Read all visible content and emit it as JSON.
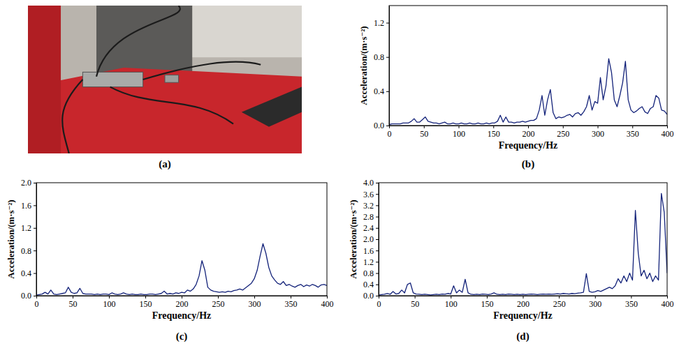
{
  "chart_data": [
    {
      "type": "image",
      "title": "(a)"
    },
    {
      "type": "line",
      "title": "(b)",
      "x_label": "Frequency/Hz",
      "y_label": "Acceleration/(m·s⁻²)",
      "color": "#14237a",
      "xlim": [
        0,
        400
      ],
      "xticks": [
        0,
        50,
        100,
        150,
        200,
        250,
        300,
        350,
        400
      ],
      "ylim": [
        0,
        1.4
      ],
      "yticks": [
        {
          "value": 0,
          "label": "0.0"
        },
        0.4,
        0.8,
        1.2
      ],
      "x": [
        0,
        4,
        8,
        12,
        16,
        20,
        24,
        28,
        32,
        36,
        40,
        44,
        48,
        52,
        56,
        60,
        64,
        68,
        72,
        76,
        80,
        84,
        88,
        92,
        96,
        100,
        104,
        108,
        112,
        116,
        120,
        124,
        128,
        132,
        136,
        140,
        144,
        148,
        152,
        156,
        160,
        164,
        168,
        172,
        176,
        180,
        184,
        188,
        192,
        196,
        200,
        204,
        208,
        212,
        216,
        220,
        224,
        228,
        232,
        236,
        240,
        244,
        248,
        252,
        256,
        260,
        264,
        268,
        272,
        276,
        280,
        284,
        288,
        292,
        296,
        300,
        304,
        308,
        312,
        316,
        320,
        324,
        328,
        332,
        336,
        340,
        344,
        348,
        352,
        356,
        360,
        364,
        368,
        372,
        376,
        380,
        384,
        388,
        392,
        396,
        400
      ],
      "values": [
        0.01,
        0.02,
        0.02,
        0.02,
        0.02,
        0.03,
        0.03,
        0.03,
        0.05,
        0.08,
        0.04,
        0.04,
        0.07,
        0.1,
        0.05,
        0.04,
        0.03,
        0.03,
        0.02,
        0.03,
        0.04,
        0.02,
        0.02,
        0.03,
        0.02,
        0.02,
        0.03,
        0.02,
        0.02,
        0.03,
        0.02,
        0.02,
        0.03,
        0.02,
        0.02,
        0.03,
        0.02,
        0.03,
        0.03,
        0.05,
        0.12,
        0.04,
        0.1,
        0.04,
        0.04,
        0.03,
        0.04,
        0.04,
        0.05,
        0.04,
        0.05,
        0.06,
        0.06,
        0.08,
        0.18,
        0.35,
        0.12,
        0.3,
        0.42,
        0.15,
        0.08,
        0.1,
        0.09,
        0.1,
        0.12,
        0.13,
        0.1,
        0.14,
        0.15,
        0.12,
        0.16,
        0.22,
        0.35,
        0.18,
        0.28,
        0.26,
        0.56,
        0.3,
        0.46,
        0.78,
        0.62,
        0.3,
        0.22,
        0.35,
        0.5,
        0.75,
        0.3,
        0.18,
        0.15,
        0.17,
        0.2,
        0.22,
        0.16,
        0.14,
        0.2,
        0.22,
        0.35,
        0.32,
        0.18,
        0.17,
        0.13
      ]
    },
    {
      "type": "line",
      "title": "(c)",
      "x_label": "Frequency/Hz",
      "y_label": "Acceleration/(m·s⁻²)",
      "color": "#14237a",
      "xlim": [
        0,
        400
      ],
      "xticks": [
        0,
        50,
        100,
        150,
        200,
        250,
        300,
        350,
        400
      ],
      "ylim": [
        0,
        2.0
      ],
      "yticks": [
        {
          "value": 0,
          "label": "0.0"
        },
        0.4,
        0.8,
        1.2,
        1.6,
        {
          "value": 2.0,
          "label": "2.0"
        }
      ],
      "x": [
        0,
        4,
        8,
        12,
        16,
        20,
        24,
        28,
        32,
        36,
        40,
        44,
        48,
        52,
        56,
        60,
        64,
        68,
        72,
        76,
        80,
        84,
        88,
        92,
        96,
        100,
        104,
        108,
        112,
        116,
        120,
        124,
        128,
        132,
        136,
        140,
        144,
        148,
        152,
        156,
        160,
        164,
        168,
        172,
        176,
        180,
        184,
        188,
        192,
        196,
        200,
        204,
        208,
        212,
        216,
        220,
        224,
        228,
        232,
        236,
        240,
        244,
        248,
        252,
        256,
        260,
        264,
        268,
        272,
        276,
        280,
        284,
        288,
        292,
        296,
        300,
        304,
        308,
        312,
        316,
        320,
        324,
        328,
        332,
        336,
        340,
        344,
        348,
        352,
        356,
        360,
        364,
        368,
        372,
        376,
        380,
        384,
        388,
        392,
        396,
        400
      ],
      "values": [
        0.01,
        0.02,
        0.03,
        0.06,
        0.03,
        0.1,
        0.03,
        0.02,
        0.03,
        0.04,
        0.05,
        0.15,
        0.06,
        0.04,
        0.05,
        0.13,
        0.04,
        0.03,
        0.03,
        0.03,
        0.02,
        0.03,
        0.02,
        0.03,
        0.03,
        0.02,
        0.05,
        0.03,
        0.02,
        0.03,
        0.05,
        0.03,
        0.02,
        0.03,
        0.02,
        0.02,
        0.03,
        0.02,
        0.02,
        0.03,
        0.03,
        0.02,
        0.03,
        0.04,
        0.08,
        0.03,
        0.04,
        0.03,
        0.05,
        0.04,
        0.06,
        0.05,
        0.1,
        0.08,
        0.12,
        0.2,
        0.35,
        0.62,
        0.45,
        0.15,
        0.1,
        0.08,
        0.07,
        0.06,
        0.07,
        0.06,
        0.08,
        0.07,
        0.09,
        0.1,
        0.12,
        0.1,
        0.14,
        0.18,
        0.22,
        0.3,
        0.45,
        0.7,
        0.92,
        0.75,
        0.5,
        0.35,
        0.28,
        0.22,
        0.2,
        0.25,
        0.18,
        0.2,
        0.17,
        0.15,
        0.18,
        0.2,
        0.16,
        0.19,
        0.17,
        0.2,
        0.18,
        0.15,
        0.19,
        0.2,
        0.18
      ]
    },
    {
      "type": "line",
      "title": "(d)",
      "x_label": "Frequency/Hz",
      "y_label": "Acceleration/(m·s⁻²)",
      "color": "#14237a",
      "xlim": [
        0,
        400
      ],
      "xticks": [
        0,
        50,
        100,
        150,
        200,
        250,
        300,
        350,
        400
      ],
      "ylim": [
        0,
        4.0
      ],
      "yticks": [
        {
          "value": 0,
          "label": "0.0"
        },
        0.4,
        0.8,
        1.2,
        1.6,
        {
          "value": 2.0,
          "label": "2.0"
        },
        2.4,
        2.8,
        3.2,
        3.6,
        {
          "value": 4.0,
          "label": "4.0"
        }
      ],
      "x": [
        0,
        4,
        8,
        12,
        16,
        20,
        24,
        28,
        32,
        36,
        40,
        44,
        48,
        52,
        56,
        60,
        64,
        68,
        72,
        76,
        80,
        84,
        88,
        92,
        96,
        100,
        104,
        108,
        112,
        116,
        120,
        124,
        128,
        132,
        136,
        140,
        144,
        148,
        152,
        156,
        160,
        164,
        168,
        172,
        176,
        180,
        184,
        188,
        192,
        196,
        200,
        204,
        208,
        212,
        216,
        220,
        224,
        228,
        232,
        236,
        240,
        244,
        248,
        252,
        256,
        260,
        264,
        268,
        272,
        276,
        280,
        284,
        288,
        292,
        296,
        300,
        304,
        308,
        312,
        316,
        320,
        324,
        328,
        332,
        336,
        340,
        344,
        348,
        352,
        356,
        360,
        364,
        368,
        372,
        376,
        380,
        384,
        388,
        392,
        396,
        400
      ],
      "values": [
        0.02,
        0.04,
        0.05,
        0.08,
        0.05,
        0.15,
        0.06,
        0.08,
        0.2,
        0.1,
        0.4,
        0.45,
        0.1,
        0.06,
        0.05,
        0.04,
        0.05,
        0.04,
        0.03,
        0.04,
        0.05,
        0.04,
        0.06,
        0.05,
        0.08,
        0.06,
        0.35,
        0.1,
        0.2,
        0.12,
        0.58,
        0.1,
        0.05,
        0.04,
        0.05,
        0.04,
        0.06,
        0.05,
        0.04,
        0.06,
        0.1,
        0.05,
        0.04,
        0.05,
        0.04,
        0.06,
        0.05,
        0.04,
        0.05,
        0.04,
        0.05,
        0.04,
        0.05,
        0.06,
        0.05,
        0.04,
        0.05,
        0.06,
        0.05,
        0.06,
        0.05,
        0.06,
        0.07,
        0.06,
        0.08,
        0.07,
        0.06,
        0.08,
        0.07,
        0.09,
        0.1,
        0.12,
        0.78,
        0.15,
        0.12,
        0.14,
        0.18,
        0.15,
        0.2,
        0.25,
        0.3,
        0.25,
        0.35,
        0.6,
        0.45,
        0.7,
        0.5,
        0.8,
        0.55,
        3.02,
        1.5,
        0.7,
        0.9,
        0.6,
        0.8,
        0.5,
        0.7,
        0.55,
        3.62,
        2.95,
        0.8
      ]
    }
  ]
}
